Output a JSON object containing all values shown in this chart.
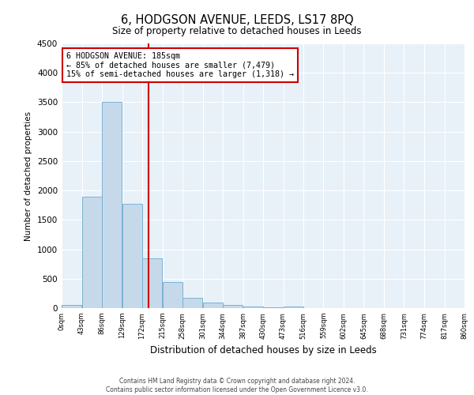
{
  "title": "6, HODGSON AVENUE, LEEDS, LS17 8PQ",
  "subtitle": "Size of property relative to detached houses in Leeds",
  "xlabel": "Distribution of detached houses by size in Leeds",
  "ylabel": "Number of detached properties",
  "bar_color": "#c6d9ea",
  "bar_edge_color": "#7ab3d4",
  "background_color": "#e8f1f8",
  "bin_edges": [
    0,
    43,
    86,
    129,
    172,
    215,
    258,
    301,
    344,
    387,
    430,
    473,
    516,
    559,
    602,
    645,
    688,
    731,
    774,
    817,
    860
  ],
  "bar_heights": [
    50,
    1900,
    3500,
    1775,
    850,
    450,
    175,
    100,
    55,
    30,
    20,
    30,
    0,
    0,
    0,
    0,
    0,
    0,
    0,
    0
  ],
  "vline_x": 185,
  "vline_color": "#cc0000",
  "annotation_title": "6 HODGSON AVENUE: 185sqm",
  "annotation_line1": "← 85% of detached houses are smaller (7,479)",
  "annotation_line2": "15% of semi-detached houses are larger (1,318) →",
  "annotation_box_color": "#cc0000",
  "ylim": [
    0,
    4500
  ],
  "yticks": [
    0,
    500,
    1000,
    1500,
    2000,
    2500,
    3000,
    3500,
    4000,
    4500
  ],
  "footer_line1": "Contains HM Land Registry data © Crown copyright and database right 2024.",
  "footer_line2": "Contains public sector information licensed under the Open Government Licence v3.0."
}
